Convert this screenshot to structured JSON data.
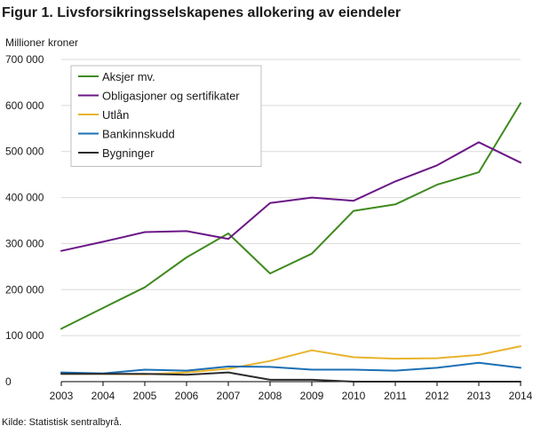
{
  "figure": {
    "title": "Figur 1. Livsforsikringsselskapenes allokering av eiendeler",
    "source": "Kilde: Statistisk sentralbyrå."
  },
  "chart_data": {
    "type": "line",
    "title": "Figur 1. Livsforsikringsselskapenes allokering av eiendeler",
    "ylabel": "Millioner  kroner",
    "xlabel": "",
    "x": [
      "2003",
      "2004",
      "2005",
      "2006",
      "2007",
      "2008",
      "2009",
      "2010",
      "2011",
      "2012",
      "2013",
      "2014"
    ],
    "ylim": [
      0,
      700000
    ],
    "yticks": [
      0,
      100000,
      200000,
      300000,
      400000,
      500000,
      600000,
      700000
    ],
    "ytick_labels": [
      "0",
      "100 000",
      "200 000",
      "300 000",
      "400 000",
      "500 000",
      "600 000",
      "700 000"
    ],
    "grid": "horizontal",
    "legend_position": "top-left",
    "series": [
      {
        "name": "Aksjer mv.",
        "color": "#3f8a1f",
        "values": [
          115000,
          160000,
          205000,
          270000,
          322000,
          235000,
          278000,
          371000,
          385000,
          428000,
          455000,
          605000
        ]
      },
      {
        "name": "Obligasjoner og sertifikater",
        "color": "#6b1787",
        "values": [
          284000,
          304000,
          325000,
          327000,
          310000,
          388000,
          400000,
          393000,
          435000,
          470000,
          520000,
          476000
        ]
      },
      {
        "name": "Utlån",
        "color": "#e8b32c",
        "values": [
          17000,
          17000,
          16000,
          20000,
          28000,
          45000,
          68000,
          53000,
          50000,
          51000,
          58000,
          77000
        ]
      },
      {
        "name": "Bankinnskudd",
        "color": "#1b6fb5",
        "values": [
          20000,
          18000,
          26000,
          24000,
          33000,
          32000,
          26000,
          26000,
          24000,
          30000,
          41000,
          30000
        ]
      },
      {
        "name": "Bygninger",
        "color": "#2b2b2b",
        "values": [
          17000,
          17000,
          17000,
          15000,
          20000,
          4000,
          4000,
          0,
          0,
          0,
          0,
          0
        ]
      }
    ]
  }
}
